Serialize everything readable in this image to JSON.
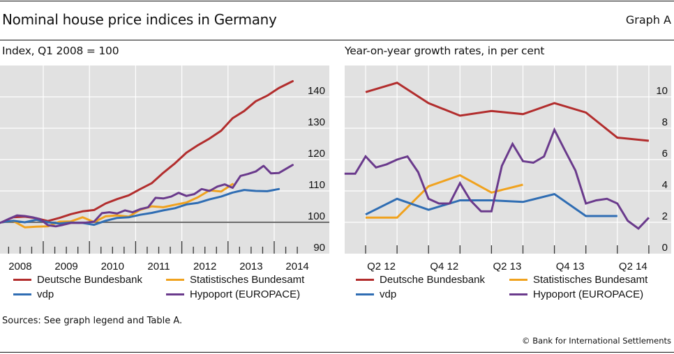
{
  "header": {
    "title": "Nominal house price indices in Germany",
    "graph_label": "Graph A"
  },
  "footer": {
    "sources": "Sources: See graph legend and Table A.",
    "copyright": "© Bank for International Settlements"
  },
  "legend": [
    {
      "name": "Deutsche Bundesbank",
      "color": "#b22d2d"
    },
    {
      "name": "Statistisches Bundesamt",
      "color": "#f0a21e"
    },
    {
      "name": "vdp",
      "color": "#2f6db3"
    },
    {
      "name": "Hypoport (EUROPACE)",
      "color": "#6a3a8c"
    }
  ],
  "chart_data": [
    {
      "type": "line",
      "title": "Index, Q1 2008 = 100",
      "xlabel": "",
      "ylabel": "",
      "x_unit": "decimal year",
      "xlim": [
        2008.0,
        2014.55
      ],
      "ylim": [
        90,
        147
      ],
      "yticks": [
        90,
        100,
        110,
        120,
        130,
        140
      ],
      "xtick_labels": [
        "2008",
        "2009",
        "2010",
        "2011",
        "2012",
        "2013",
        "2014"
      ],
      "reference_line": 100,
      "grid": true,
      "y_axis_side": "right",
      "legend_position": "below",
      "series": [
        {
          "name": "Deutsche Bundesbank",
          "color": "#b22d2d",
          "x": [
            2008.1,
            2008.35,
            2008.6,
            2008.85,
            2009.1,
            2009.35,
            2009.6,
            2009.85,
            2010.1,
            2010.35,
            2010.6,
            2010.85,
            2011.1,
            2011.35,
            2011.6,
            2011.85,
            2012.1,
            2012.35,
            2012.6,
            2012.85,
            2013.1,
            2013.35,
            2013.6,
            2013.85,
            2014.1,
            2014.4
          ],
          "values": [
            100,
            101.6,
            101.8,
            101.3,
            100.4,
            101.4,
            102.6,
            103.5,
            103.9,
            106.0,
            107.4,
            108.6,
            110.6,
            112.5,
            115.8,
            118.8,
            122.2,
            124.6,
            126.7,
            129.2,
            133.2,
            135.5,
            138.6,
            140.4,
            142.8,
            145.0
          ]
        },
        {
          "name": "Statistisches Bundesamt",
          "color": "#f0a21e",
          "x": [
            2008.1,
            2008.35,
            2008.6,
            2008.85,
            2009.1,
            2009.35,
            2009.6,
            2009.85,
            2010.1,
            2010.35,
            2010.6,
            2010.85,
            2011.1,
            2011.35,
            2011.6,
            2011.85,
            2012.1,
            2012.35,
            2012.6,
            2012.85,
            2013.1
          ],
          "values": [
            100,
            100.4,
            98.4,
            98.6,
            98.7,
            100.2,
            100.3,
            101.6,
            100.1,
            101.9,
            102.2,
            101.8,
            104.0,
            105.1,
            104.8,
            105.6,
            106.3,
            108.0,
            110.2,
            109.8,
            112.2
          ]
        },
        {
          "name": "vdp",
          "color": "#2f6db3",
          "x": [
            2008.1,
            2008.35,
            2008.6,
            2008.85,
            2009.1,
            2009.35,
            2009.6,
            2009.85,
            2010.1,
            2010.35,
            2010.6,
            2010.85,
            2011.1,
            2011.35,
            2011.6,
            2011.85,
            2012.1,
            2012.35,
            2012.6,
            2012.85,
            2013.1,
            2013.35,
            2013.6,
            2013.85,
            2014.1
          ],
          "values": [
            100,
            100.5,
            100.0,
            100.8,
            100.0,
            99.6,
            99.9,
            99.8,
            99.2,
            100.5,
            101.4,
            101.6,
            102.4,
            103.0,
            103.8,
            104.5,
            105.7,
            106.2,
            107.3,
            108.2,
            109.5,
            110.3,
            110.0,
            109.9,
            110.6
          ]
        },
        {
          "name": "Hypoport (EUROPACE)",
          "color": "#6a3a8c",
          "x": [
            2007.95,
            2008.1,
            2008.27,
            2008.43,
            2008.6,
            2008.77,
            2008.93,
            2009.1,
            2009.27,
            2009.43,
            2009.6,
            2009.77,
            2009.93,
            2010.1,
            2010.27,
            2010.43,
            2010.6,
            2010.77,
            2010.93,
            2011.1,
            2011.27,
            2011.43,
            2011.6,
            2011.77,
            2011.93,
            2012.1,
            2012.27,
            2012.43,
            2012.6,
            2012.77,
            2012.93,
            2013.1,
            2013.27,
            2013.43,
            2013.6,
            2013.77,
            2013.93,
            2014.1,
            2014.4
          ],
          "values": [
            99.3,
            100.0,
            101.2,
            102.2,
            102.0,
            101.6,
            101.0,
            99.1,
            98.7,
            99.2,
            99.8,
            99.8,
            99.9,
            100.2,
            102.9,
            103.2,
            102.8,
            103.8,
            103.2,
            104.2,
            104.8,
            107.8,
            107.6,
            108.2,
            109.4,
            108.4,
            109.0,
            110.6,
            110.0,
            111.4,
            112.1,
            111.0,
            114.8,
            115.4,
            116.2,
            118.0,
            115.6,
            115.7,
            118.3
          ]
        }
      ]
    },
    {
      "type": "line",
      "title": "Year-on-year growth rates, in per cent",
      "xlabel": "",
      "ylabel": "",
      "x_unit": "quarter index (0 = Q2 12 boundary)",
      "xlim": [
        -0.67,
        9.7
      ],
      "ylim": [
        0,
        11.6
      ],
      "yticks": [
        0,
        2,
        4,
        6,
        8,
        10
      ],
      "xtick_labels": [
        "Q2 12",
        "Q4 12",
        "Q2 13",
        "Q4 13",
        "Q2 14"
      ],
      "grid": true,
      "y_axis_side": "right",
      "legend_position": "below",
      "series": [
        {
          "name": "Deutsche Bundesbank",
          "color": "#b22d2d",
          "x": [
            0,
            1,
            2,
            3,
            4,
            5,
            6,
            7,
            8,
            9
          ],
          "values": [
            10.3,
            10.9,
            9.6,
            8.8,
            9.1,
            8.9,
            9.6,
            9.0,
            7.4,
            7.2
          ]
        },
        {
          "name": "Statistisches Bundesamt",
          "color": "#f0a21e",
          "x": [
            0,
            1,
            2,
            3,
            4,
            5
          ],
          "values": [
            2.3,
            2.3,
            4.3,
            5.0,
            3.9,
            4.4
          ]
        },
        {
          "name": "vdp",
          "color": "#2f6db3",
          "x": [
            0,
            1,
            2,
            3,
            4,
            5,
            6,
            7,
            8
          ],
          "values": [
            2.5,
            3.5,
            2.8,
            3.4,
            3.4,
            3.3,
            3.8,
            2.4,
            2.4
          ]
        },
        {
          "name": "Hypoport (EUROPACE)",
          "color": "#6a3a8c",
          "x": [
            -0.67,
            -0.33,
            0,
            0.33,
            0.67,
            1,
            1.33,
            1.67,
            2,
            2.33,
            2.67,
            3,
            3.33,
            3.67,
            4,
            4.33,
            4.67,
            5,
            5.33,
            5.67,
            6,
            6.33,
            6.67,
            7,
            7.33,
            7.67,
            8,
            8.33,
            8.67,
            9
          ],
          "values": [
            5.1,
            5.1,
            6.2,
            5.5,
            5.7,
            6.0,
            6.2,
            5.2,
            3.5,
            3.2,
            3.2,
            4.5,
            3.4,
            2.7,
            2.7,
            5.6,
            7.0,
            5.9,
            5.8,
            6.2,
            7.9,
            6.6,
            5.3,
            3.2,
            3.4,
            3.5,
            3.2,
            2.1,
            1.6,
            2.3
          ]
        }
      ]
    }
  ]
}
